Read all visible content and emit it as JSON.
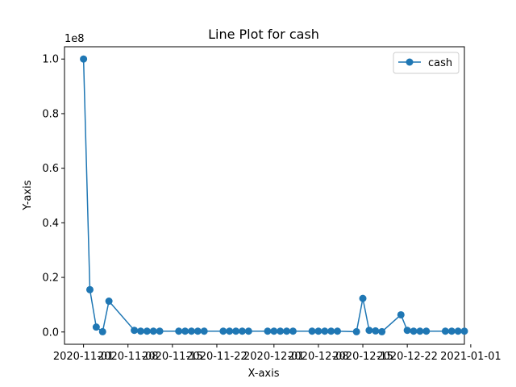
{
  "chart_data": {
    "type": "line",
    "title": "Line Plot for cash",
    "xlabel": "X-axis",
    "ylabel": "Y-axis",
    "offset_text": "1e8",
    "legend": {
      "entries": [
        "cash"
      ],
      "placement": "top-right"
    },
    "grid": false,
    "series_color": "#1f77b4",
    "xlim": [
      "2020-10-29",
      "2020-12-31"
    ],
    "ylim": [
      -4500000,
      104500000
    ],
    "x_ticks": [
      "2020-11-01",
      "2020-11-08",
      "2020-11-15",
      "2020-11-22",
      "2020-12-01",
      "2020-12-08",
      "2020-12-15",
      "2020-12-22",
      "2021-01-01"
    ],
    "y_ticks": [
      "0.0",
      "0.2",
      "0.4",
      "0.6",
      "0.8",
      "1.0"
    ],
    "y_tick_values": [
      0,
      20000000,
      40000000,
      60000000,
      80000000,
      100000000
    ],
    "series": [
      {
        "name": "cash",
        "x": [
          "2020-11-01",
          "2020-11-02",
          "2020-11-03",
          "2020-11-04",
          "2020-11-05",
          "2020-11-09",
          "2020-11-10",
          "2020-11-11",
          "2020-11-12",
          "2020-11-13",
          "2020-11-16",
          "2020-11-17",
          "2020-11-18",
          "2020-11-19",
          "2020-11-20",
          "2020-11-23",
          "2020-11-24",
          "2020-11-25",
          "2020-11-26",
          "2020-11-27",
          "2020-11-30",
          "2020-12-01",
          "2020-12-02",
          "2020-12-03",
          "2020-12-04",
          "2020-12-07",
          "2020-12-08",
          "2020-12-09",
          "2020-12-10",
          "2020-12-11",
          "2020-12-14",
          "2020-12-15",
          "2020-12-16",
          "2020-12-17",
          "2020-12-18",
          "2020-12-21",
          "2020-12-22",
          "2020-12-23",
          "2020-12-24",
          "2020-12-25",
          "2020-12-28",
          "2020-12-29",
          "2020-12-30",
          "2020-12-31"
        ],
        "y": [
          100000000,
          15500000,
          1800000,
          100000,
          11300000,
          600000,
          300000,
          300000,
          300000,
          300000,
          300000,
          300000,
          300000,
          300000,
          300000,
          300000,
          300000,
          300000,
          300000,
          300000,
          300000,
          300000,
          300000,
          300000,
          300000,
          300000,
          300000,
          300000,
          300000,
          300000,
          100000,
          12300000,
          600000,
          400000,
          100000,
          6300000,
          600000,
          300000,
          300000,
          300000,
          300000,
          300000,
          300000,
          300000
        ]
      }
    ]
  }
}
